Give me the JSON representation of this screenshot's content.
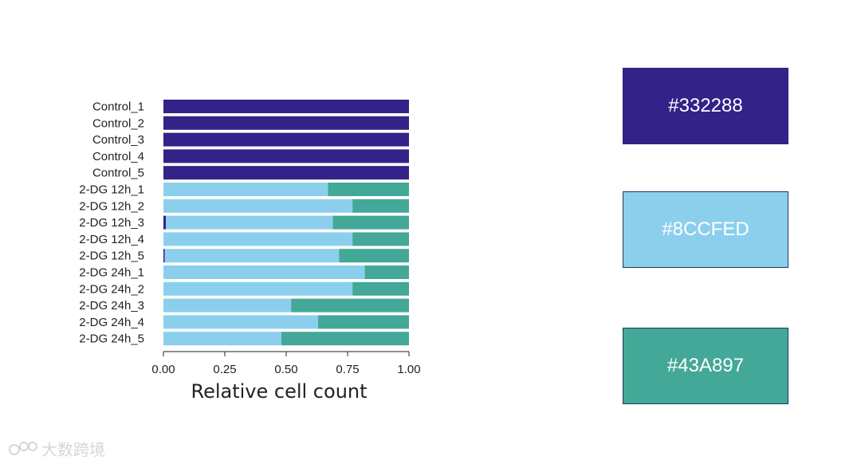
{
  "chart_data": {
    "type": "bar",
    "orientation": "horizontal",
    "stacked": true,
    "categories": [
      "Control_1",
      "Control_2",
      "Control_3",
      "Control_4",
      "Control_5",
      "2-DG 12h_1",
      "2-DG 12h_2",
      "2-DG 12h_3",
      "2-DG 12h_4",
      "2-DG 12h_5",
      "2-DG 24h_1",
      "2-DG 24h_2",
      "2-DG 24h_3",
      "2-DG 24h_4",
      "2-DG 24h_5"
    ],
    "series": [
      {
        "name": "#332288",
        "color": "#332288",
        "values": [
          1.0,
          1.0,
          1.0,
          1.0,
          1.0,
          0,
          0,
          0.01,
          0,
          0.005,
          0,
          0,
          0,
          0,
          0
        ]
      },
      {
        "name": "#8CCFED",
        "color": "#8CCFED",
        "values": [
          0,
          0,
          0,
          0,
          0,
          0.67,
          0.77,
          0.68,
          0.77,
          0.71,
          0.82,
          0.77,
          0.52,
          0.63,
          0.48
        ]
      },
      {
        "name": "#43A897",
        "color": "#43A897",
        "values": [
          0,
          0,
          0,
          0,
          0,
          0.33,
          0.23,
          0.31,
          0.23,
          0.285,
          0.18,
          0.23,
          0.48,
          0.37,
          0.52
        ]
      }
    ],
    "xlim": [
      0,
      1
    ],
    "xticks": [
      "0.00",
      "0.25",
      "0.50",
      "0.75",
      "1.00"
    ],
    "xlabel": "Relative cell count",
    "ylabel": "",
    "title": ""
  },
  "legend": [
    {
      "label": "#332288",
      "color": "#332288"
    },
    {
      "label": "#8CCFED",
      "color": "#8CCFED"
    },
    {
      "label": "#43A897",
      "color": "#43A897"
    }
  ],
  "watermark": "大数跨境"
}
